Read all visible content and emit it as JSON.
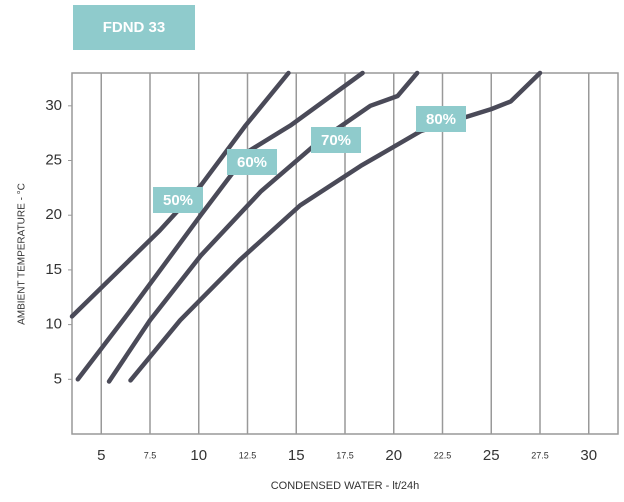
{
  "chart_data": {
    "type": "line",
    "title": "FDND 33",
    "xlabel": "CONDENSED WATER - lt/24h",
    "ylabel": "AMBIENT TEMPERATURE - °C",
    "xlim": [
      3.5,
      31.5
    ],
    "ylim": [
      0,
      33
    ],
    "xticks": [
      5,
      7.5,
      10,
      12.5,
      15,
      17.5,
      20,
      22.5,
      25,
      27.5,
      30
    ],
    "yticks": [
      5,
      10,
      15,
      20,
      25,
      30
    ],
    "grid": true,
    "label_color": "#8fcbcc",
    "series": [
      {
        "name": "50%",
        "color": "#4a4a58",
        "x": [
          3.5,
          8.0,
          10.1,
          12.4,
          14.6
        ],
        "values": [
          10.75,
          18.6,
          22.7,
          28.2,
          33
        ]
      },
      {
        "name": "60%",
        "color": "#4a4a58",
        "x": [
          3.8,
          6.5,
          10.1,
          12.6,
          14.7,
          18.4
        ],
        "values": [
          5,
          11.3,
          20,
          25.9,
          28.2,
          33
        ]
      },
      {
        "name": "70%",
        "color": "#4a4a58",
        "x": [
          5.4,
          7.5,
          10.1,
          13.2,
          16.2,
          18.8,
          20.2,
          21.2
        ],
        "values": [
          4.8,
          10.4,
          16.3,
          22.2,
          26.8,
          30,
          30.9,
          33
        ]
      },
      {
        "name": "80%",
        "color": "#4a4a58",
        "x": [
          6.5,
          9.05,
          12.1,
          15.2,
          18.3,
          21.4,
          25,
          26,
          27.5
        ],
        "values": [
          4.9,
          10.4,
          15.9,
          20.9,
          24.5,
          27.7,
          29.7,
          30.4,
          33
        ]
      }
    ]
  }
}
